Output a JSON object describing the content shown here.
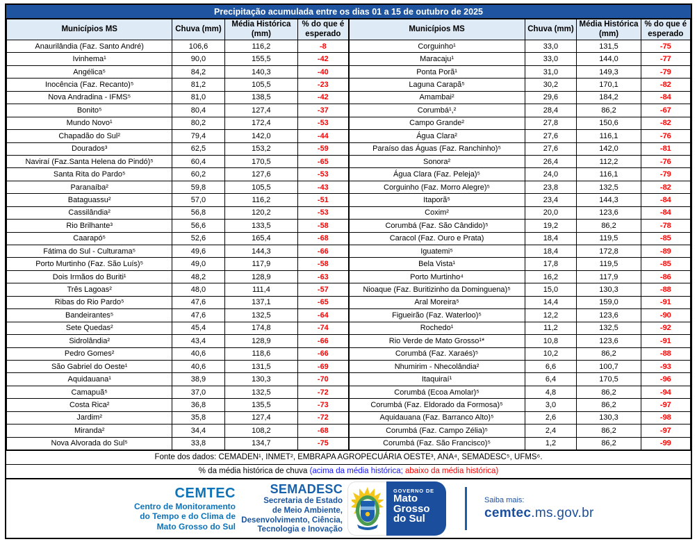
{
  "title": "Precipitação acumulada entre os dias 01 a 15 de outubro de 2025",
  "columns": {
    "municipio": "Municípios MS",
    "chuva": "Chuva (mm)",
    "media": "Média Histórica (mm)",
    "pct": "% do que é esperado"
  },
  "colors": {
    "title_bar_bg": "#1F55A0",
    "header_bg": "#DEEAF6",
    "negative_pct": "#FF0000",
    "legend_above_blue": "#1414FF",
    "legend_below_red": "#FF0000",
    "cemtec_blue": "#0D73B9",
    "gov_blue": "#1B4F9E"
  },
  "tables": {
    "left": {
      "rows": [
        [
          "Anaurilândia (Faz. Santo André)",
          "106,6",
          "116,2",
          "-8"
        ],
        [
          "Ivinhema¹",
          "90,0",
          "155,5",
          "-42"
        ],
        [
          "Angélica⁵",
          "84,2",
          "140,3",
          "-40"
        ],
        [
          "Inocência (Faz. Recanto)⁵",
          "81,2",
          "105,5",
          "-23"
        ],
        [
          "Nova Andradina - IFMS⁵",
          "81,0",
          "138,5",
          "-42"
        ],
        [
          "Bonito⁵",
          "80,4",
          "127,4",
          "-37"
        ],
        [
          "Mundo Novo¹",
          "80,2",
          "172,4",
          "-53"
        ],
        [
          "Chapadão do Sul²",
          "79,4",
          "142,0",
          "-44"
        ],
        [
          "Dourados³",
          "62,5",
          "153,2",
          "-59"
        ],
        [
          "Naviraí (Faz.Santa Helena do Pindó)⁵",
          "60,4",
          "170,5",
          "-65"
        ],
        [
          "Santa Rita do Pardo⁵",
          "60,2",
          "127,6",
          "-53"
        ],
        [
          "Paranaíba²",
          "59,8",
          "105,5",
          "-43"
        ],
        [
          "Bataguassu²",
          "57,0",
          "116,2",
          "-51"
        ],
        [
          "Cassilândia²",
          "56,8",
          "120,2",
          "-53"
        ],
        [
          "Rio Brilhante³",
          "56,6",
          "133,5",
          "-58"
        ],
        [
          "Caarapó⁵",
          "52,6",
          "165,4",
          "-68"
        ],
        [
          "Fátima do Sul - Culturama⁵",
          "49,6",
          "144,3",
          "-66"
        ],
        [
          "Porto Murtinho (Faz. São Luís)⁵",
          "49,0",
          "117,9",
          "-58"
        ],
        [
          "Dois Irmãos do Buriti¹",
          "48,2",
          "128,9",
          "-63"
        ],
        [
          "Três Lagoas²",
          "48,0",
          "111,4",
          "-57"
        ],
        [
          "Ribas do Rio Pardo⁵",
          "47,6",
          "137,1",
          "-65"
        ],
        [
          "Bandeirantes⁵",
          "47,6",
          "132,5",
          "-64"
        ],
        [
          "Sete Quedas²",
          "45,4",
          "174,8",
          "-74"
        ],
        [
          "Sidrolândia²",
          "43,4",
          "128,9",
          "-66"
        ],
        [
          "Pedro Gomes²",
          "40,6",
          "118,6",
          "-66"
        ],
        [
          "São Gabriel do Oeste¹",
          "40,6",
          "131,5",
          "-69"
        ],
        [
          "Aquidauana¹",
          "38,9",
          "130,3",
          "-70"
        ],
        [
          "Camapuã⁵",
          "37,0",
          "132,5",
          "-72"
        ],
        [
          "Costa Rica²",
          "36,8",
          "135,5",
          "-73"
        ],
        [
          "Jardim²",
          "35,8",
          "127,4",
          "-72"
        ],
        [
          "Miranda²",
          "34,4",
          "108,2",
          "-68"
        ],
        [
          "Nova Alvorada do Sul⁵",
          "33,8",
          "134,7",
          "-75"
        ]
      ]
    },
    "right": {
      "rows": [
        [
          "Corguinho¹",
          "33,0",
          "131,5",
          "-75"
        ],
        [
          "Maracaju¹",
          "33,0",
          "144,0",
          "-77"
        ],
        [
          "Ponta Porã¹",
          "31,0",
          "149,3",
          "-79"
        ],
        [
          "Laguna Carapã⁵",
          "30,2",
          "170,1",
          "-82"
        ],
        [
          "Amambai²",
          "29,6",
          "184,2",
          "-84"
        ],
        [
          "Corumbá¹,²",
          "28,4",
          "86,2",
          "-67"
        ],
        [
          "Campo Grande²",
          "27,8",
          "150,6",
          "-82"
        ],
        [
          "Água Clara²",
          "27,6",
          "116,1",
          "-76"
        ],
        [
          "Paraíso das Águas (Faz. Ranchinho)⁵",
          "27,6",
          "142,0",
          "-81"
        ],
        [
          "Sonora²",
          "26,4",
          "112,2",
          "-76"
        ],
        [
          "Água Clara (Faz. Peleja)⁵",
          "24,0",
          "116,1",
          "-79"
        ],
        [
          "Corguinho (Faz. Morro Alegre)⁵",
          "23,8",
          "132,5",
          "-82"
        ],
        [
          "Itaporã⁵",
          "23,4",
          "144,3",
          "-84"
        ],
        [
          "Coxim²",
          "20,0",
          "123,6",
          "-84"
        ],
        [
          "Corumbá (Faz. São Cândido)⁵",
          "19,2",
          "86,2",
          "-78"
        ],
        [
          "Caracol (Faz. Ouro e Prata)",
          "18,4",
          "119,5",
          "-85"
        ],
        [
          "Iguatemi⁵",
          "18,4",
          "172,8",
          "-89"
        ],
        [
          "Bela Vista¹",
          "17,8",
          "119,5",
          "-85"
        ],
        [
          "Porto Murtinho⁴",
          "16,2",
          "117,9",
          "-86"
        ],
        [
          "Nioaque (Faz. Buritizinho da Dominguena)⁵",
          "15,0",
          "130,3",
          "-88"
        ],
        [
          "Aral Moreira⁵",
          "14,4",
          "159,0",
          "-91"
        ],
        [
          "Figueirão (Faz. Waterloo)⁵",
          "12,2",
          "123,6",
          "-90"
        ],
        [
          "Rochedo¹",
          "11,2",
          "132,5",
          "-92"
        ],
        [
          "Rio Verde de Mato Grosso¹*",
          "10,8",
          "123,6",
          "-91"
        ],
        [
          "Corumbá (Faz. Xaraés)⁵",
          "10,2",
          "86,2",
          "-88"
        ],
        [
          "Nhumirim - Nhecolândia²",
          "6,6",
          "100,7",
          "-93"
        ],
        [
          "Itaquiraí¹",
          "6,4",
          "170,5",
          "-96"
        ],
        [
          "Corumbá (Ecoa Amolar)⁵",
          "4,8",
          "86,2",
          "-94"
        ],
        [
          "Corumbá (Faz. Eldorado da Formosa)⁵",
          "3,0",
          "86,2",
          "-97"
        ],
        [
          "Aquidauana (Faz. Barranco Alto)⁵",
          "2,6",
          "130,3",
          "-98"
        ],
        [
          "Corumbá (Faz. Campo Zélia)⁵",
          "2,4",
          "86,2",
          "-97"
        ],
        [
          "Corumbá (Faz. São Francisco)⁵",
          "1,2",
          "86,2",
          "-99"
        ]
      ]
    }
  },
  "footer": {
    "fonte": "Fonte dos dados:  CEMADEN¹, INMET², EMBRAPA AGROPECUÁRIA OESTE³, ANA⁴, SEMADESC⁵, UFMS⁶.",
    "legend_prefix": "% da média histórica de chuva ",
    "legend_above": "(acima da média histórica;",
    "legend_below": " abaixo da média histórica)"
  },
  "branding": {
    "cemtec": {
      "title": "CEMTEC",
      "lines": [
        "Centro de Monitoramento",
        "do Tempo e do Clima de",
        "Mato Grosso do Sul"
      ]
    },
    "semadesc": {
      "title": "SEMADESC",
      "lines": [
        "Secretaria de Estado",
        "de Meio Ambiente,",
        "Desenvolvimento, Ciência,",
        "Tecnologia e Inovação"
      ]
    },
    "governo": {
      "kicker": "GOVERNO DE",
      "lines": [
        "Mato",
        "Grosso",
        "do Sul"
      ]
    },
    "saiba": {
      "label": "Saiba mais:",
      "url_bold": "cemtec",
      "url_rest": ".ms.gov.br"
    }
  }
}
